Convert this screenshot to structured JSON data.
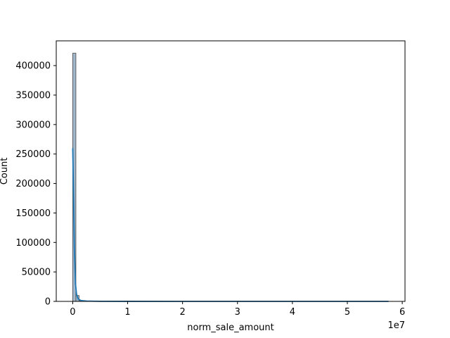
{
  "chart_data": {
    "type": "bar",
    "subtype": "histogram with kde",
    "title": "",
    "xlabel": "norm_sale_amount",
    "ylabel": "Count",
    "x_offset_text": "1e7",
    "xlim": [
      -3000000,
      60500000
    ],
    "ylim": [
      0,
      442000
    ],
    "x_ticks": [
      0,
      10000000,
      20000000,
      30000000,
      40000000,
      50000000,
      60000000
    ],
    "x_tick_labels": [
      "0",
      "1",
      "2",
      "3",
      "4",
      "5",
      "6"
    ],
    "y_ticks": [
      0,
      50000,
      100000,
      150000,
      200000,
      250000,
      300000,
      350000,
      400000
    ],
    "y_tick_labels": [
      "0",
      "50000",
      "100000",
      "150000",
      "200000",
      "250000",
      "300000",
      "350000",
      "400000"
    ],
    "bin_width": 575000,
    "bins": [
      {
        "x_start": 0,
        "count": 421000
      },
      {
        "x_start": 575000,
        "count": 10000
      },
      {
        "x_start": 1150000,
        "count": 1500
      },
      {
        "x_start": 1725000,
        "count": 500
      },
      {
        "x_start": 2300000,
        "count": 200
      }
    ],
    "kde": {
      "x": [
        0,
        150000,
        300000,
        500000,
        700000,
        1000000,
        1500000,
        2500000,
        5000000,
        10000000,
        57500000
      ],
      "y": [
        260000,
        180000,
        90000,
        30000,
        12000,
        4000,
        1500,
        500,
        150,
        50,
        0
      ]
    },
    "colors": {
      "bar_fill": "#a2b8cc",
      "bar_edge": "#444444",
      "kde_line": "#1f77b4"
    },
    "grid": false,
    "legend": "none"
  }
}
